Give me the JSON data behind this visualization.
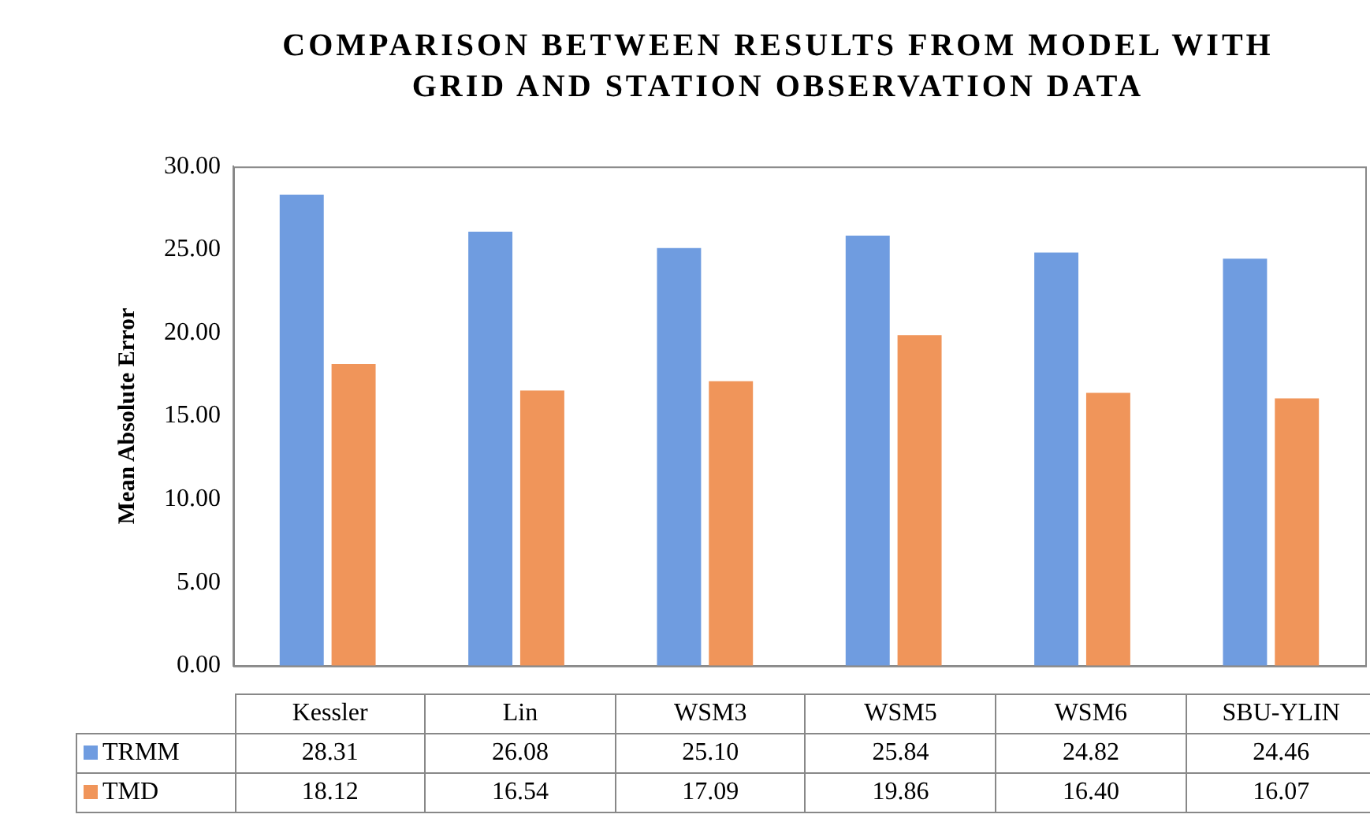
{
  "chart_data": {
    "type": "bar",
    "title": "COMPARISON BETWEEN RESULTS FROM MODEL WITH GRID AND STATION OBSERVATION DATA",
    "ylabel": "Mean Absolute Error",
    "categories": [
      "Kessler",
      "Lin",
      "WSM3",
      "WSM5",
      "WSM6",
      "SBU-YLIN"
    ],
    "series": [
      {
        "name": "TRMM",
        "color": "#6f9ce0",
        "values": [
          28.31,
          26.08,
          25.1,
          25.84,
          24.82,
          24.46
        ],
        "value_labels": [
          "28.31",
          "26.08",
          "25.10",
          "25.84",
          "24.82",
          "24.46"
        ]
      },
      {
        "name": "TMD",
        "color": "#f0955a",
        "values": [
          18.12,
          16.54,
          17.09,
          19.86,
          16.4,
          16.07
        ],
        "value_labels": [
          "18.12",
          "16.54",
          "17.09",
          "19.86",
          "16.40",
          "16.07"
        ]
      }
    ],
    "ylim": [
      0,
      30
    ],
    "yticks": [
      {
        "value": 0,
        "label": "0.00"
      },
      {
        "value": 5,
        "label": "5.00"
      },
      {
        "value": 10,
        "label": "10.00"
      },
      {
        "value": 15,
        "label": "15.00"
      },
      {
        "value": 20,
        "label": "20.00"
      },
      {
        "value": 25,
        "label": "25.00"
      },
      {
        "value": 30,
        "label": "30.00"
      }
    ],
    "grid": false,
    "legend": "bottom"
  }
}
